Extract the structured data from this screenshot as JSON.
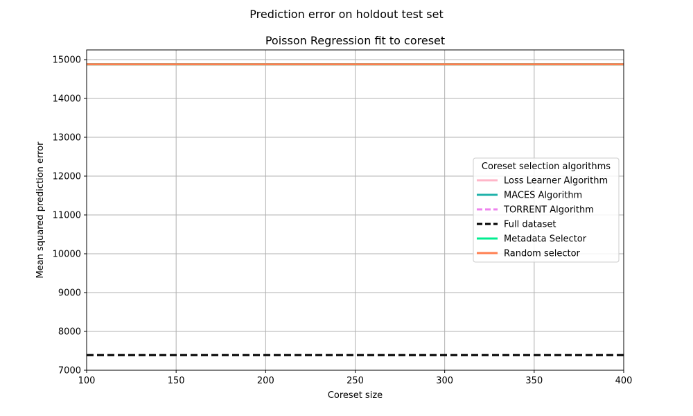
{
  "figure": {
    "suptitle": "Prediction error on holdout test set"
  },
  "chart_data": {
    "type": "line",
    "title": "Poisson Regression fit to coreset",
    "xlabel": "Coreset size",
    "ylabel": "Mean squared prediction error",
    "xlim": [
      100,
      400
    ],
    "ylim": [
      7000,
      15250
    ],
    "xticks": [
      100,
      150,
      200,
      250,
      300,
      350,
      400
    ],
    "yticks": [
      7000,
      8000,
      9000,
      10000,
      11000,
      12000,
      13000,
      14000,
      15000
    ],
    "grid": true,
    "legend": {
      "title": "Coreset selection algorithms",
      "placement": "center-right"
    },
    "x": [
      100,
      400
    ],
    "series": [
      {
        "name": "Loss Learner Algorithm",
        "color": "#ffb6c8",
        "dash": "solid",
        "values": [
          14880,
          14880
        ]
      },
      {
        "name": "MACES Algorithm",
        "color": "#20b2aa",
        "dash": "solid",
        "values": [
          14880,
          14880
        ]
      },
      {
        "name": "TORRENT Algorithm",
        "color": "#ee82ee",
        "dash": "dashed",
        "values": [
          14880,
          14880
        ]
      },
      {
        "name": "Full dataset",
        "color": "#000000",
        "dash": "dashed",
        "values": [
          7390,
          7390
        ]
      },
      {
        "name": "Metadata Selector",
        "color": "#00ee90",
        "dash": "solid",
        "values": [
          14880,
          14880
        ]
      },
      {
        "name": "Random selector",
        "color": "#ff7f50",
        "dash": "solid",
        "values": [
          14880,
          14880
        ]
      }
    ]
  }
}
